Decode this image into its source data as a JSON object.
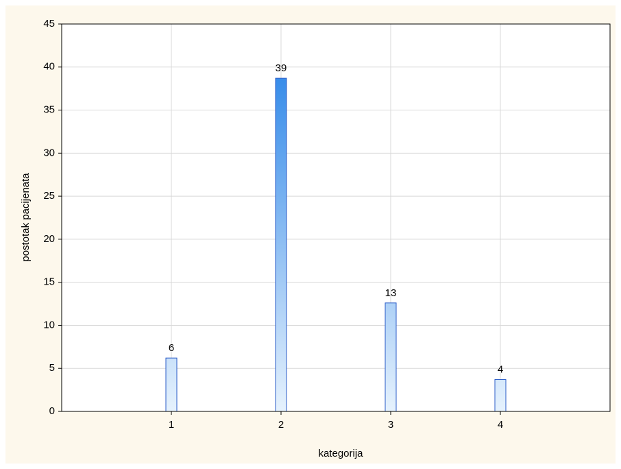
{
  "chart_data": {
    "type": "bar",
    "x_label": "kategorija",
    "y_label": "postotak pacijenata",
    "categories": [
      "1",
      "2",
      "3",
      "4"
    ],
    "values": [
      6.2,
      38.7,
      12.6,
      3.7
    ],
    "value_labels": [
      "6",
      "39",
      "13",
      "4"
    ],
    "color": "#1c7ce6",
    "ylim": [
      0,
      45
    ],
    "yticks": [
      0,
      5,
      10,
      15,
      20,
      25,
      30,
      35,
      40,
      45
    ],
    "grid": true
  }
}
